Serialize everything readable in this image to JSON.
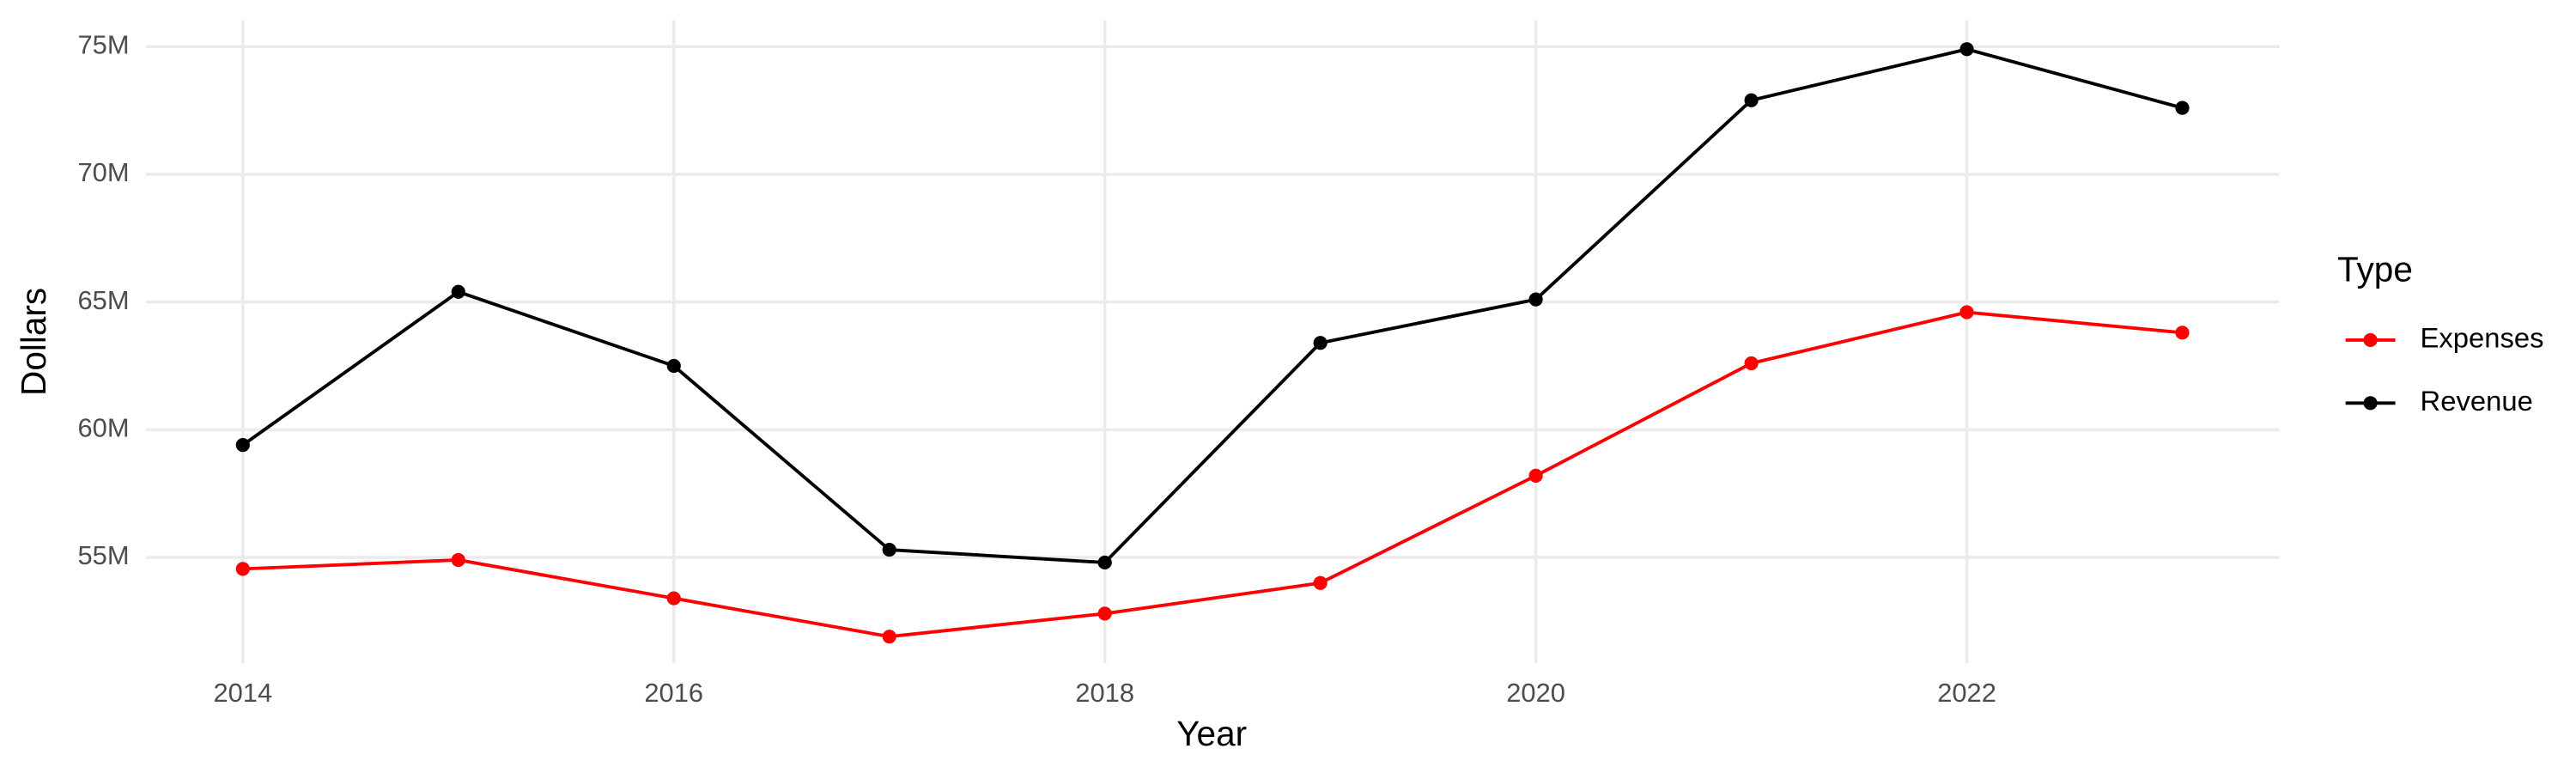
{
  "chart_data": {
    "type": "line",
    "x_label": "Year",
    "y_label": "Dollars",
    "legend_title": "Type",
    "x": [
      2014,
      2015,
      2016,
      2017,
      2018,
      2019,
      2020,
      2021,
      2022,
      2023
    ],
    "series": [
      {
        "name": "Expenses",
        "color": "#ff0000",
        "values": [
          54550000,
          54900000,
          53400000,
          51900000,
          52800000,
          54000000,
          58200000,
          62600000,
          64600000,
          63800000
        ]
      },
      {
        "name": "Revenue",
        "color": "#000000",
        "values": [
          59400000,
          65400000,
          62500000,
          55300000,
          54800000,
          63400000,
          65100000,
          72900000,
          74900000,
          72600000
        ]
      }
    ],
    "xlim": [
      2013.55,
      2023.45
    ],
    "xticks": [
      2014,
      2016,
      2018,
      2020,
      2022
    ],
    "ylim": [
      50850000,
      76040000
    ],
    "yticks": [
      {
        "value": 55000000,
        "label": "55M"
      },
      {
        "value": 60000000,
        "label": "60M"
      },
      {
        "value": 65000000,
        "label": "65M"
      },
      {
        "value": 70000000,
        "label": "70M"
      },
      {
        "value": 75000000,
        "label": "75M"
      }
    ],
    "grid": true,
    "legend": "right"
  }
}
